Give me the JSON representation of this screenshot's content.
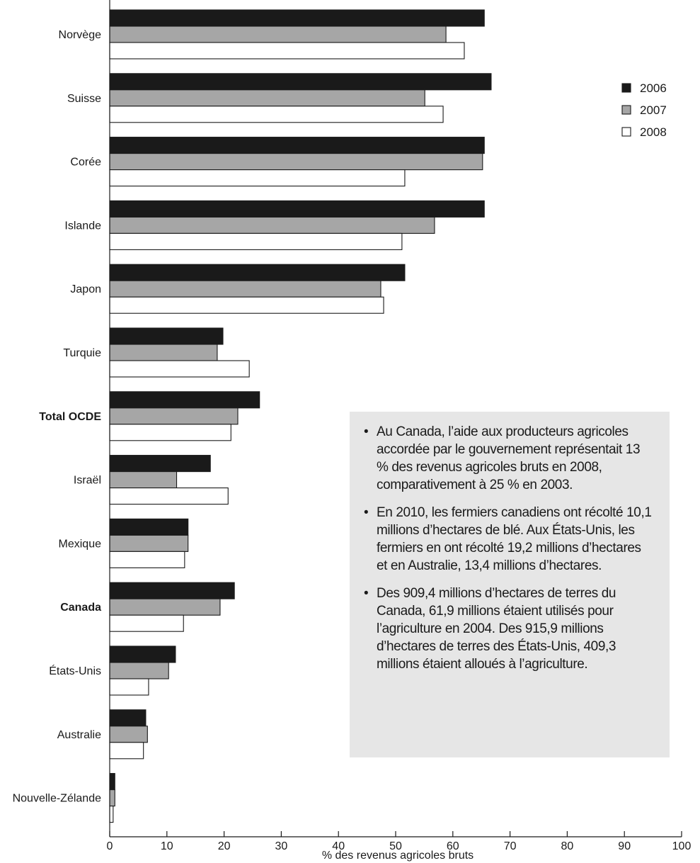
{
  "chart_data": {
    "type": "bar",
    "orientation": "horizontal",
    "categories": [
      "Norvège",
      "Suisse",
      "Corée",
      "Islande",
      "Japon",
      "Turquie",
      "Total OCDE",
      "Israël",
      "Mexique",
      "Canada",
      "États-Unis",
      "Australie",
      "Nouvelle-Zélande"
    ],
    "bold_categories": [
      "Total OCDE",
      "Canada"
    ],
    "series": [
      {
        "name": "2006",
        "color": "#1a1a1a",
        "values": [
          65.5,
          66.7,
          65.5,
          65.5,
          51.6,
          19.8,
          26.2,
          17.6,
          13.7,
          21.8,
          11.5,
          6.3,
          0.9
        ]
      },
      {
        "name": "2007",
        "color": "#a6a6a6",
        "values": [
          58.8,
          55.1,
          65.2,
          56.8,
          47.4,
          18.8,
          22.4,
          11.7,
          13.7,
          19.3,
          10.3,
          6.6,
          0.9
        ]
      },
      {
        "name": "2008",
        "color": "#ffffff",
        "values": [
          62.0,
          58.3,
          51.6,
          51.1,
          47.9,
          24.4,
          21.2,
          20.7,
          13.1,
          12.9,
          6.8,
          5.9,
          0.6
        ]
      }
    ],
    "xlabel": "% des revenus agricoles bruts",
    "ylabel": "",
    "xlim": [
      0,
      100
    ],
    "xticks": [
      0,
      10,
      20,
      30,
      40,
      50,
      60,
      70,
      80,
      90,
      100
    ],
    "legend_position": "top-right"
  },
  "notes": [
    "Au Canada, l’aide aux producteurs agricoles accordée par le gouvernement représentait 13 % des revenus agricoles bruts en 2008, comparativement à 25 % en 2003.",
    "En 2010, les fermiers canadiens ont récolté 10,1 millions d’hectares de blé. Aux États-Unis, les fermiers en ont récolté 19,2 millions d’hectares et en Australie, 13,4 millions d’hectares.",
    "Des 909,4 millions d’hectares de terres du Canada, 61,9 millions étaient utilisés pour l’agriculture en 2004. Des 915,9 millions d’hectares de terres des États-Unis, 409,3 millions étaient alloués à l’agriculture."
  ]
}
